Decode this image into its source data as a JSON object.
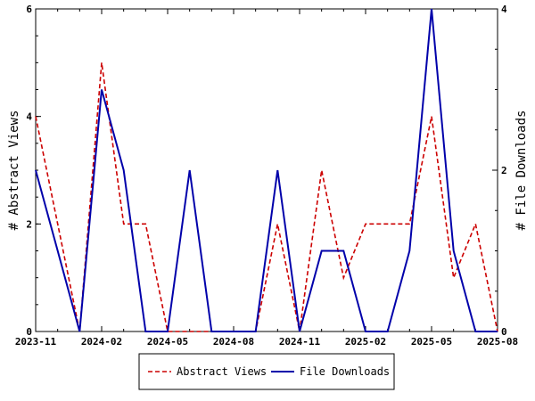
{
  "chart_data": {
    "type": "line",
    "x": [
      "2023-11",
      "2023-12",
      "2024-01",
      "2024-02",
      "2024-03",
      "2024-04",
      "2024-05",
      "2024-06",
      "2024-07",
      "2024-08",
      "2024-09",
      "2024-10",
      "2024-11",
      "2024-12",
      "2025-01",
      "2025-02",
      "2025-03",
      "2025-04",
      "2025-05",
      "2025-06",
      "2025-07",
      "2025-08"
    ],
    "x_ticks": [
      "2023-11",
      "2024-02",
      "2024-05",
      "2024-08",
      "2024-11",
      "2025-02",
      "2025-05",
      "2025-08"
    ],
    "y_left": {
      "label": "# Abstract Views",
      "range": [
        0,
        6
      ],
      "ticks": [
        "0",
        "2",
        "4",
        "6"
      ]
    },
    "y_right": {
      "label": "# File Downloads",
      "range": [
        0,
        4
      ],
      "ticks": [
        "0",
        "2",
        "4"
      ]
    },
    "series": [
      {
        "name": "Abstract Views",
        "axis": "left",
        "color": "#cc0000",
        "dash": "dashed",
        "values": [
          4,
          2,
          0,
          5,
          2,
          2,
          0,
          0,
          0,
          0,
          0,
          2,
          0,
          3,
          1,
          2,
          2,
          2,
          4,
          1,
          2,
          0
        ]
      },
      {
        "name": "File Downloads",
        "axis": "right",
        "color": "#0000aa",
        "dash": "solid",
        "values": [
          2,
          1,
          0,
          3,
          2,
          0,
          0,
          2,
          0,
          0,
          0,
          2,
          0,
          1,
          1,
          0,
          0,
          1,
          4,
          1,
          0,
          0
        ]
      }
    ],
    "legend_position": "bottom-center",
    "grid": false
  }
}
